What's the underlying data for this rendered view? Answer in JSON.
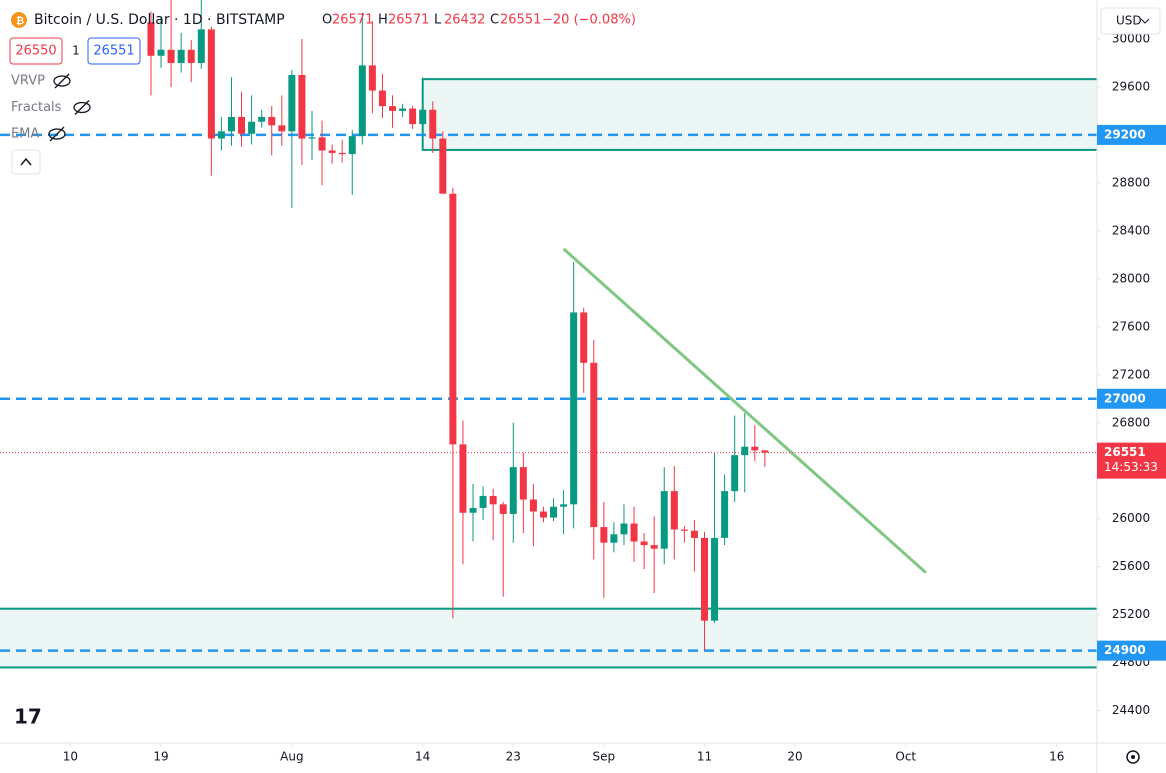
{
  "header": {
    "symbol": "Bitcoin / U.S. Dollar · 1D · BITSTAMP",
    "ohlc": [
      [
        "O",
        "26571"
      ],
      [
        "H",
        "26571"
      ],
      [
        "L",
        "26432"
      ],
      [
        "C",
        "26551"
      ]
    ],
    "change": "−20 (−0.08%)",
    "bid": "26550",
    "spread": "1",
    "ask": "26551",
    "indicators": [
      "VRVP",
      "Fractals",
      "EMA"
    ],
    "currency": "USD"
  },
  "chart_data": {
    "type": "candlestick",
    "x": [
      "07-18",
      "07-19",
      "07-20",
      "07-21",
      "07-22",
      "07-23",
      "07-24",
      "07-25",
      "07-26",
      "07-27",
      "07-28",
      "07-29",
      "07-30",
      "07-31",
      "08-01",
      "08-02",
      "08-03",
      "08-04",
      "08-05",
      "08-06",
      "08-07",
      "08-08",
      "08-09",
      "08-10",
      "08-11",
      "08-12",
      "08-13",
      "08-14",
      "08-15",
      "08-16",
      "08-17",
      "08-18",
      "08-19",
      "08-20",
      "08-21",
      "08-22",
      "08-23",
      "08-24",
      "08-25",
      "08-26",
      "08-27",
      "08-28",
      "08-29",
      "08-30",
      "08-31",
      "09-01",
      "09-02",
      "09-03",
      "09-04",
      "09-05",
      "09-06",
      "09-07",
      "09-08",
      "09-09",
      "09-10",
      "09-11",
      "09-12",
      "09-13",
      "09-14",
      "09-15",
      "09-16",
      "09-17"
    ],
    "open": [
      30140,
      29860,
      29910,
      29800,
      29910,
      29800,
      30080,
      29170,
      29230,
      29350,
      29210,
      29310,
      29350,
      29280,
      29230,
      29700,
      29170,
      29180,
      29070,
      29050,
      29040,
      29190,
      29780,
      29570,
      29440,
      29400,
      29420,
      29290,
      29410,
      29170,
      28710,
      26620,
      26050,
      26090,
      26190,
      26120,
      26040,
      26430,
      26160,
      26060,
      26010,
      26100,
      26120,
      27720,
      27300,
      25930,
      25800,
      25870,
      25960,
      25810,
      25780,
      25750,
      26230,
      25910,
      25900,
      25840,
      25150,
      25840,
      26230,
      26530,
      26600,
      26570
    ],
    "high": [
      30230,
      30190,
      30400,
      30050,
      29990,
      30340,
      30100,
      29350,
      29680,
      29560,
      29530,
      29410,
      29440,
      29530,
      29740,
      30000,
      29400,
      29320,
      29120,
      29160,
      29240,
      30220,
      30150,
      29710,
      29530,
      29460,
      29440,
      29680,
      29480,
      29230,
      28760,
      26820,
      26290,
      26270,
      26250,
      26140,
      26800,
      26550,
      26290,
      26100,
      26170,
      26240,
      28140,
      27760,
      27490,
      26140,
      25970,
      26120,
      26100,
      25880,
      26020,
      26430,
      26440,
      25940,
      25990,
      25890,
      26550,
      26370,
      26860,
      26880,
      26780,
      26571
    ],
    "low": [
      29530,
      29760,
      29600,
      29720,
      29640,
      29750,
      28860,
      29070,
      29110,
      29100,
      29120,
      29260,
      29030,
      29110,
      28590,
      28950,
      28990,
      28780,
      28960,
      28970,
      28700,
      29120,
      29380,
      29340,
      29260,
      29350,
      29250,
      29100,
      29050,
      28720,
      25170,
      25620,
      25810,
      25990,
      25820,
      25350,
      25800,
      25880,
      25770,
      25970,
      25980,
      25870,
      25920,
      27050,
      25660,
      25340,
      25720,
      25780,
      25640,
      25580,
      25380,
      25620,
      25660,
      25800,
      25560,
      24900,
      25130,
      25780,
      26140,
      26220,
      26480,
      26432
    ],
    "close": [
      29860,
      29910,
      29800,
      29910,
      29800,
      30080,
      29170,
      29230,
      29350,
      29210,
      29310,
      29350,
      29280,
      29230,
      29700,
      29170,
      29180,
      29070,
      29050,
      29040,
      29190,
      29780,
      29570,
      29440,
      29400,
      29420,
      29290,
      29410,
      29170,
      28710,
      26620,
      26050,
      26090,
      26190,
      26120,
      26040,
      26430,
      26160,
      26060,
      26010,
      26100,
      26120,
      27720,
      27300,
      25930,
      25800,
      25870,
      25960,
      25810,
      25780,
      25750,
      26230,
      25910,
      25900,
      25840,
      25150,
      25840,
      26230,
      26530,
      26600,
      26570,
      26551
    ],
    "up_color": "#089981",
    "down_color": "#f23645",
    "ylim": [
      24130,
      30325
    ],
    "yticks": [
      24400,
      24800,
      25200,
      25600,
      26000,
      26400,
      26800,
      27200,
      27600,
      28000,
      28400,
      28800,
      29200,
      29600,
      30000
    ],
    "xlim": [
      "07-03",
      "10-20"
    ],
    "xticks": [
      {
        "value": "07-10",
        "label": "10"
      },
      {
        "value": "07-19",
        "label": "19"
      },
      {
        "value": "08-01",
        "label": "Aug"
      },
      {
        "value": "08-14",
        "label": "14"
      },
      {
        "value": "08-23",
        "label": "23"
      },
      {
        "value": "09-01",
        "label": "Sep"
      },
      {
        "value": "09-11",
        "label": "11"
      },
      {
        "value": "09-20",
        "label": "20"
      },
      {
        "value": "10-01",
        "label": "Oct"
      },
      {
        "value": "10-16",
        "label": "16"
      }
    ],
    "levels": [
      29200,
      27000,
      24900
    ],
    "level_color": "#2196f3",
    "zones": [
      {
        "low": 29075,
        "high": 29665,
        "x_start": "08-14"
      },
      {
        "low": 24760,
        "high": 25250
      }
    ],
    "zone_color": "#089981",
    "trendline": {
      "x": [
        "08-28",
        "10-03"
      ],
      "y": [
        28250,
        25550
      ],
      "color": "#81c784"
    },
    "last_price": 26551,
    "countdown": "14:53:33",
    "grid": false
  }
}
